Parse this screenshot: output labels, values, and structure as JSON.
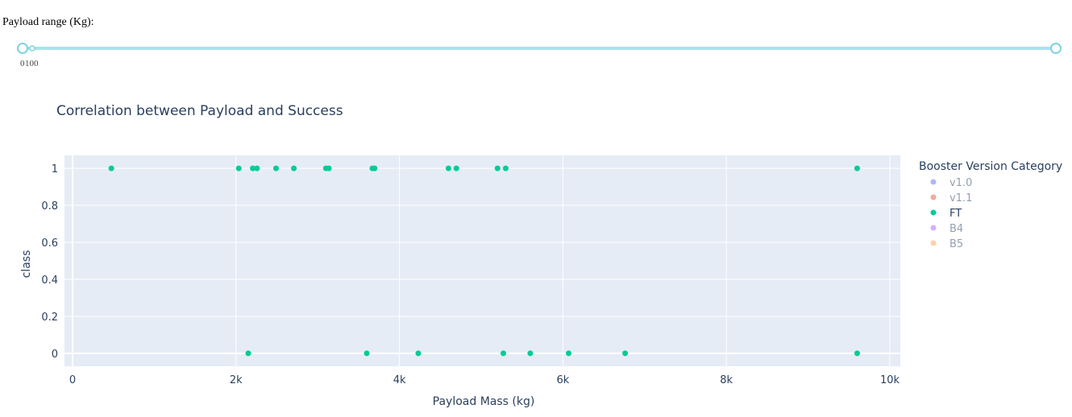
{
  "slider": {
    "label": "Payload range (Kg):",
    "marks": [
      "0",
      "100"
    ],
    "value_min": 0,
    "value_max": 10000,
    "range_min": 0,
    "range_max": 10000,
    "track_color": "#a8e4ec",
    "handle_color": "#7fd3df"
  },
  "chart_data": {
    "type": "scatter",
    "title": "Correlation between Payload and Success",
    "xlabel": "Payload Mass (kg)",
    "ylabel": "class",
    "xlim": [
      0,
      10000
    ],
    "ylim": [
      -0.07,
      1.07
    ],
    "x_ticks": [
      0,
      2000,
      4000,
      6000,
      8000,
      10000
    ],
    "x_tick_labels": [
      "0",
      "2k",
      "4k",
      "6k",
      "8k",
      "10k"
    ],
    "y_ticks": [
      0,
      0.2,
      0.4,
      0.6,
      0.8,
      1
    ],
    "y_tick_labels": [
      "0",
      "0.2",
      "0.4",
      "0.6",
      "0.8",
      "1"
    ],
    "grid": true,
    "legend_position": "right",
    "legend_title": "Booster Version Category",
    "legend": [
      {
        "name": "v1.0",
        "color": "#636efa",
        "active": false
      },
      {
        "name": "v1.1",
        "color": "#ef553b",
        "active": false
      },
      {
        "name": "FT",
        "color": "#00cc96",
        "active": true
      },
      {
        "name": "B4",
        "color": "#ab63fa",
        "active": false
      },
      {
        "name": "B5",
        "color": "#ffa15a",
        "active": false
      }
    ],
    "series": [
      {
        "name": "FT",
        "color": "#00cc96",
        "points": [
          {
            "x": 475,
            "y": 1
          },
          {
            "x": 2034,
            "y": 1
          },
          {
            "x": 2205,
            "y": 1
          },
          {
            "x": 2257,
            "y": 1
          },
          {
            "x": 2490,
            "y": 1
          },
          {
            "x": 2708,
            "y": 1
          },
          {
            "x": 3100,
            "y": 1
          },
          {
            "x": 3136,
            "y": 1
          },
          {
            "x": 3669,
            "y": 1
          },
          {
            "x": 3696,
            "y": 1
          },
          {
            "x": 4600,
            "y": 1
          },
          {
            "x": 4696,
            "y": 1
          },
          {
            "x": 5200,
            "y": 1
          },
          {
            "x": 5300,
            "y": 1
          },
          {
            "x": 9600,
            "y": 1
          },
          {
            "x": 2150,
            "y": 0
          },
          {
            "x": 3600,
            "y": 0
          },
          {
            "x": 4230,
            "y": 0
          },
          {
            "x": 5271,
            "y": 0
          },
          {
            "x": 5600,
            "y": 0
          },
          {
            "x": 6070,
            "y": 0
          },
          {
            "x": 6761,
            "y": 0
          },
          {
            "x": 9600,
            "y": 0
          }
        ]
      }
    ]
  }
}
